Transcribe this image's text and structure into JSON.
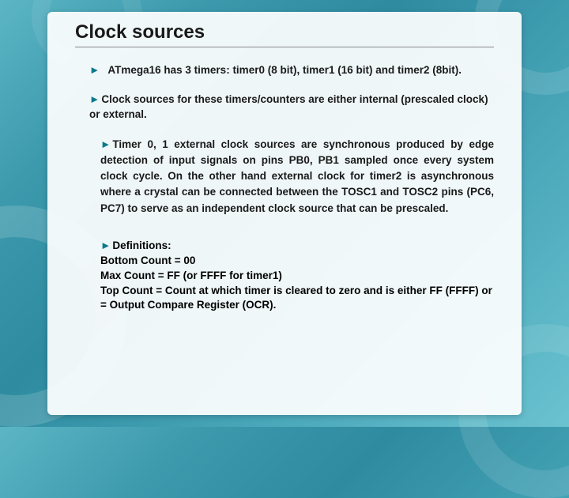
{
  "title": "Clock sources",
  "colors": {
    "marker": "#0a7a8a",
    "text": "#1a1a1a",
    "box_bg": "rgba(255,255,255,0.92)",
    "bg_gradient_start": "#5bb5c4",
    "bg_gradient_end": "#6bc2d0"
  },
  "typography": {
    "title_fontsize": 24,
    "body_fontsize": 13.5,
    "font_family": "Arial"
  },
  "bullets": [
    {
      "marker": "►",
      "text": "ATmega16 has 3 timers: timer0 (8 bit), timer1 (16 bit) and timer2 (8bit)."
    },
    {
      "marker": "►",
      "text": "Clock sources for these timers/counters are either internal (prescaled clock) or external."
    },
    {
      "marker": "►",
      "text": "Timer 0, 1 external clock sources are synchronous produced by edge detection of input signals on pins PB0, PB1 sampled once every system clock cycle. On the other hand external clock for timer2 is asynchronous where a crystal can be connected between the TOSC1 and TOSC2 pins (PC6, PC7) to serve as an independent clock source that can be prescaled."
    }
  ],
  "definitions": {
    "marker": "►",
    "heading": "Definitions:",
    "lines": [
      "Bottom Count = 00",
      "Max Count = FF (or FFFF for timer1)",
      "Top Count = Count at which timer is cleared to zero and is either FF (FFFF) or  = Output Compare Register (OCR)."
    ]
  }
}
